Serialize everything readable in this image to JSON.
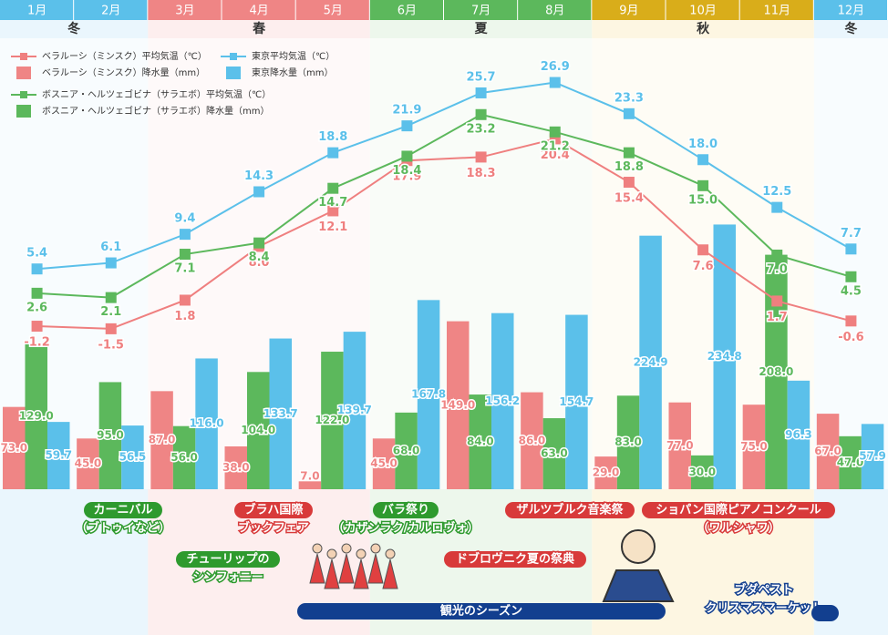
{
  "chart_data": {
    "type": "bar-line",
    "categories": [
      "1月",
      "2月",
      "3月",
      "4月",
      "5月",
      "6月",
      "7月",
      "8月",
      "9月",
      "10月",
      "11月",
      "12月"
    ],
    "seasons": [
      {
        "name": "冬",
        "color": "#5bc0ea",
        "tint": "#eaf6fd"
      },
      {
        "name": "春",
        "color": "#ef8585",
        "tint": "#fdeeee"
      },
      {
        "name": "夏",
        "color": "#5cb85c",
        "tint": "#edf7ec"
      },
      {
        "name": "秋",
        "color": "#d9ad1a",
        "tint": "#fdf6e2"
      },
      {
        "name": "冬",
        "color": "#5bc0ea",
        "tint": "#eaf6fd"
      }
    ],
    "ylim": [
      -20,
      32
    ],
    "y2lim": [
      0,
      400
    ],
    "series": [
      {
        "name": "ベラルーシ（ミンスク）平均気温（℃）",
        "kind": "line",
        "color": "#ef7f7f",
        "values": [
          -1.2,
          -1.5,
          1.8,
          8.0,
          12.1,
          17.9,
          18.3,
          20.4,
          15.4,
          7.6,
          1.7,
          -0.6
        ],
        "value_labels": [
          "-1.2",
          "-1.5",
          "1.8",
          "8.0",
          "12.1",
          "17.9",
          "18.3",
          "20.4",
          "15.4",
          "7.6",
          "1.7",
          "-0.6"
        ]
      },
      {
        "name": "ベラルーシ（ミンスク）降水量（mm）",
        "kind": "bar",
        "axis": "y2",
        "color": "#ef8585",
        "values": [
          73.0,
          45.0,
          87.0,
          38.0,
          7.0,
          45.0,
          149.0,
          86.0,
          29.0,
          77.0,
          75.0,
          67.0
        ],
        "value_labels": [
          "73.0",
          "45.0",
          "87.0",
          "38.0",
          "7.0",
          "45.0",
          "149.0",
          "86.0",
          "29.0",
          "77.0",
          "75.0",
          "67.0"
        ]
      },
      {
        "name": "東京平均気温（℃）",
        "kind": "line",
        "color": "#5bc0ea",
        "values": [
          5.4,
          6.1,
          9.4,
          14.3,
          18.8,
          21.9,
          25.7,
          26.9,
          23.3,
          18.0,
          12.5,
          7.7
        ],
        "value_labels": [
          "5.4",
          "6.1",
          "9.4",
          "14.3",
          "18.8",
          "21.9",
          "25.7",
          "26.9",
          "23.3",
          "18.0",
          "12.5",
          "7.7"
        ]
      },
      {
        "name": "東京降水量（mm）",
        "kind": "bar",
        "axis": "y2",
        "color": "#5bc0ea",
        "values": [
          59.7,
          56.5,
          116.0,
          133.7,
          139.7,
          167.8,
          156.2,
          154.7,
          224.9,
          234.8,
          96.3,
          57.9
        ],
        "value_labels": [
          "59.7",
          "56.5",
          "116.0",
          "133.7",
          "139.7",
          "167.8",
          "156.2",
          "154.7",
          "224.9",
          "234.8",
          "96.3",
          "57.9"
        ]
      },
      {
        "name": "ボスニア・ヘルツェゴビナ（サラエボ）平均気温（℃）",
        "kind": "line",
        "color": "#5cb85c",
        "values": [
          2.6,
          2.1,
          7.1,
          8.4,
          14.7,
          18.4,
          23.2,
          21.2,
          18.8,
          15.0,
          7.0,
          4.5
        ],
        "value_labels": [
          "2.6",
          "2.1",
          "7.1",
          "8.4",
          "14.7",
          "18.4",
          "23.2",
          "21.2",
          "18.8",
          "15.0",
          "7.0",
          "4.5"
        ]
      },
      {
        "name": "ボスニア・ヘルツェゴビナ（サラエボ）降水量（mm）",
        "kind": "bar",
        "axis": "y2",
        "color": "#5cb85c",
        "values": [
          129.0,
          95.0,
          56.0,
          104.0,
          122.0,
          68.0,
          84.0,
          63.0,
          83.0,
          30.0,
          208.0,
          47.0
        ],
        "value_labels": [
          "129.0",
          "95.0",
          "56.0",
          "104.0",
          "122.0",
          "68.0",
          "84.0",
          "63.0",
          "83.0",
          "30.0",
          "208.0",
          "47.0"
        ]
      }
    ],
    "annotations": [
      {
        "lines": [
          "カーニバル",
          "（ブトゥイなど）"
        ],
        "color": "#2e9a2e"
      },
      {
        "lines": [
          "ブラハ国際",
          "ブックフェア"
        ],
        "color": "#d83a3a"
      },
      {
        "lines": [
          "バラ祭り",
          "（カザンラク/カルロヴォ）"
        ],
        "color": "#2e9a2e"
      },
      {
        "lines": [
          "ザルツブルク音楽祭"
        ],
        "color": "#d83a3a"
      },
      {
        "lines": [
          "ショパン国際ピアノコンクール",
          "（ワルシャワ）"
        ],
        "color": "#d83a3a"
      },
      {
        "lines": [
          "チューリップの",
          "シンフォニー"
        ],
        "color": "#2e9a2e"
      },
      {
        "lines": [
          "ドブロヴニク夏の祭典"
        ],
        "color": "#d83a3a"
      },
      {
        "lines": [
          "ブダペスト",
          "クリスマスマーケット"
        ],
        "color": "#123f8f"
      },
      {
        "lines": [
          "観光のシーズン"
        ],
        "color": "#123f8f"
      }
    ]
  }
}
